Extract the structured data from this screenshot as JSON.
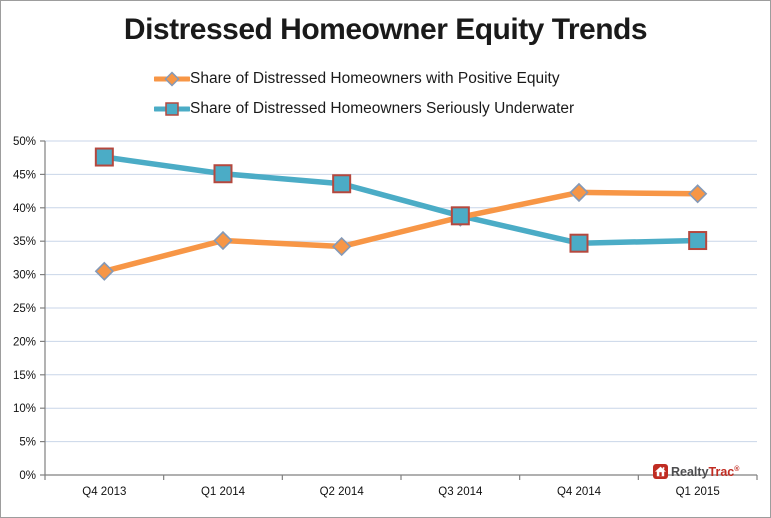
{
  "title": "Distressed Homeowner Equity Trends",
  "chart_data": {
    "type": "line",
    "categories": [
      "Q4 2013",
      "Q1 2014",
      "Q2 2014",
      "Q3 2014",
      "Q4 2014",
      "Q1 2015"
    ],
    "series": [
      {
        "name": "Share of Distressed Homeowners with Positive Equity",
        "values": [
          30.5,
          35.1,
          34.2,
          38.6,
          42.3,
          42.1
        ],
        "color": "#F79646",
        "marker": "diamond",
        "marker_border": "#8499B7"
      },
      {
        "name": "Share of Distressed Homeowners Seriously Underwater",
        "values": [
          47.6,
          45.1,
          43.6,
          38.8,
          34.7,
          35.1
        ],
        "color": "#4BACC6",
        "marker": "square",
        "marker_border": "#B5483E"
      }
    ],
    "xlabel": "",
    "ylabel": "",
    "ylim": [
      0,
      50
    ],
    "ytick_step": 5,
    "ytick_labels": [
      "0%",
      "5%",
      "10%",
      "15%",
      "20%",
      "25%",
      "30%",
      "35%",
      "40%",
      "45%",
      "50%"
    ],
    "grid": "horizontal",
    "legend_position": "top-left",
    "gridline_color": "#C9D6E8",
    "axis_color": "#808080",
    "label_color": "#111111"
  },
  "logo": {
    "brand_realty": "Realty",
    "brand_trac": "Trac",
    "registered_mark": "®",
    "icon_color": "#C02C22"
  }
}
